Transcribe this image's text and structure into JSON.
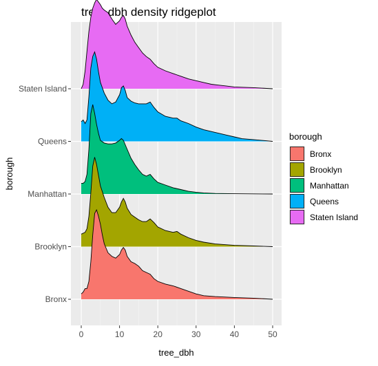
{
  "chart_data": {
    "type": "ridgeline",
    "title": "tree_dbh density ridgeplot",
    "xlabel": "tree_dbh",
    "ylabel": "borough",
    "xlim": [
      0,
      50
    ],
    "x_ticks": [
      0,
      10,
      20,
      30,
      40,
      50
    ],
    "grid": true,
    "legend": {
      "title": "borough",
      "position": "right"
    },
    "categories": [
      "Bronx",
      "Brooklyn",
      "Manhattan",
      "Queens",
      "Staten Island"
    ],
    "series": [
      {
        "name": "Bronx",
        "color": "#F8766D",
        "density": [
          [
            0,
            0.06
          ],
          [
            0.5,
            0.08
          ],
          [
            1,
            0.12
          ],
          [
            1.5,
            0.12
          ],
          [
            2,
            0.2
          ],
          [
            2.5,
            0.42
          ],
          [
            3,
            0.72
          ],
          [
            3.5,
            0.96
          ],
          [
            4,
            1.0
          ],
          [
            4.5,
            0.93
          ],
          [
            5,
            0.84
          ],
          [
            5.5,
            0.72
          ],
          [
            6,
            0.62
          ],
          [
            7,
            0.52
          ],
          [
            8,
            0.48
          ],
          [
            9,
            0.46
          ],
          [
            10,
            0.5
          ],
          [
            10.5,
            0.55
          ],
          [
            11,
            0.58
          ],
          [
            11.5,
            0.55
          ],
          [
            12,
            0.48
          ],
          [
            13,
            0.42
          ],
          [
            14,
            0.4
          ],
          [
            15,
            0.37
          ],
          [
            16,
            0.32
          ],
          [
            17,
            0.3
          ],
          [
            18,
            0.28
          ],
          [
            19,
            0.23
          ],
          [
            20,
            0.2
          ],
          [
            22,
            0.17
          ],
          [
            24,
            0.15
          ],
          [
            26,
            0.12
          ],
          [
            28,
            0.09
          ],
          [
            30,
            0.06
          ],
          [
            32,
            0.04
          ],
          [
            35,
            0.03
          ],
          [
            40,
            0.02
          ],
          [
            45,
            0.012
          ],
          [
            50,
            0.0
          ]
        ]
      },
      {
        "name": "Brooklyn",
        "color": "#A3A500",
        "density": [
          [
            0,
            0.14
          ],
          [
            0.5,
            0.15
          ],
          [
            1,
            0.16
          ],
          [
            1.5,
            0.2
          ],
          [
            2,
            0.34
          ],
          [
            2.5,
            0.6
          ],
          [
            3,
            0.9
          ],
          [
            3.5,
            1.0
          ],
          [
            4,
            0.92
          ],
          [
            4.5,
            0.8
          ],
          [
            5,
            0.68
          ],
          [
            6,
            0.55
          ],
          [
            7,
            0.44
          ],
          [
            8,
            0.38
          ],
          [
            9,
            0.38
          ],
          [
            10,
            0.44
          ],
          [
            10.5,
            0.5
          ],
          [
            11,
            0.54
          ],
          [
            11.5,
            0.5
          ],
          [
            12,
            0.43
          ],
          [
            13,
            0.36
          ],
          [
            14,
            0.33
          ],
          [
            15,
            0.3
          ],
          [
            16,
            0.28
          ],
          [
            17,
            0.28
          ],
          [
            18,
            0.31
          ],
          [
            19,
            0.27
          ],
          [
            20,
            0.22
          ],
          [
            22,
            0.18
          ],
          [
            24,
            0.16
          ],
          [
            25,
            0.17
          ],
          [
            26,
            0.14
          ],
          [
            28,
            0.1
          ],
          [
            30,
            0.07
          ],
          [
            32,
            0.05
          ],
          [
            35,
            0.03
          ],
          [
            40,
            0.015
          ],
          [
            45,
            0.008
          ],
          [
            50,
            0.0
          ]
        ]
      },
      {
        "name": "Manhattan",
        "color": "#00BF7D",
        "density": [
          [
            0,
            0.12
          ],
          [
            0.5,
            0.12
          ],
          [
            1,
            0.14
          ],
          [
            1.5,
            0.22
          ],
          [
            2,
            0.5
          ],
          [
            2.5,
            0.9
          ],
          [
            3,
            1.0
          ],
          [
            3.5,
            0.9
          ],
          [
            4,
            0.78
          ],
          [
            4.5,
            0.68
          ],
          [
            5,
            0.6
          ],
          [
            6,
            0.57
          ],
          [
            7,
            0.56
          ],
          [
            8,
            0.56
          ],
          [
            9,
            0.57
          ],
          [
            10,
            0.6
          ],
          [
            10.5,
            0.62
          ],
          [
            11,
            0.6
          ],
          [
            12,
            0.5
          ],
          [
            13,
            0.4
          ],
          [
            14,
            0.33
          ],
          [
            15,
            0.27
          ],
          [
            16,
            0.22
          ],
          [
            17,
            0.2
          ],
          [
            18,
            0.22
          ],
          [
            19,
            0.17
          ],
          [
            20,
            0.13
          ],
          [
            22,
            0.1
          ],
          [
            24,
            0.07
          ],
          [
            26,
            0.05
          ],
          [
            28,
            0.03
          ],
          [
            30,
            0.02
          ],
          [
            32,
            0.012
          ],
          [
            35,
            0.006
          ],
          [
            40,
            0.003
          ],
          [
            50,
            0.0
          ]
        ]
      },
      {
        "name": "Queens",
        "color": "#00B0F6",
        "density": [
          [
            0,
            0.22
          ],
          [
            0.5,
            0.24
          ],
          [
            1,
            0.2
          ],
          [
            1.5,
            0.24
          ],
          [
            2,
            0.5
          ],
          [
            2.5,
            0.82
          ],
          [
            3,
            0.95
          ],
          [
            3.5,
            1.0
          ],
          [
            4,
            0.92
          ],
          [
            4.5,
            0.78
          ],
          [
            5,
            0.66
          ],
          [
            6,
            0.54
          ],
          [
            7,
            0.46
          ],
          [
            8,
            0.42
          ],
          [
            9,
            0.44
          ],
          [
            10,
            0.52
          ],
          [
            10.5,
            0.6
          ],
          [
            11,
            0.62
          ],
          [
            11.5,
            0.57
          ],
          [
            12,
            0.49
          ],
          [
            13,
            0.45
          ],
          [
            14,
            0.43
          ],
          [
            15,
            0.42
          ],
          [
            16,
            0.42
          ],
          [
            17,
            0.42
          ],
          [
            18,
            0.44
          ],
          [
            19,
            0.38
          ],
          [
            20,
            0.33
          ],
          [
            22,
            0.28
          ],
          [
            24,
            0.26
          ],
          [
            25,
            0.26
          ],
          [
            26,
            0.23
          ],
          [
            28,
            0.2
          ],
          [
            30,
            0.16
          ],
          [
            32,
            0.13
          ],
          [
            34,
            0.11
          ],
          [
            36,
            0.09
          ],
          [
            38,
            0.07
          ],
          [
            40,
            0.05
          ],
          [
            42,
            0.03
          ],
          [
            45,
            0.02
          ],
          [
            50,
            0.0
          ]
        ]
      },
      {
        "name": "Staten Island",
        "color": "#E76BF3",
        "density": [
          [
            0,
            0.0
          ],
          [
            0.5,
            0.05
          ],
          [
            1,
            0.2
          ],
          [
            1.5,
            0.42
          ],
          [
            2,
            0.64
          ],
          [
            2.5,
            0.8
          ],
          [
            3,
            0.9
          ],
          [
            3.5,
            0.96
          ],
          [
            4,
            1.0
          ],
          [
            4.5,
            0.97
          ],
          [
            5,
            0.94
          ],
          [
            5.5,
            0.9
          ],
          [
            6,
            0.88
          ],
          [
            7,
            0.85
          ],
          [
            8,
            0.78
          ],
          [
            9,
            0.72
          ],
          [
            10,
            0.76
          ],
          [
            10.5,
            0.8
          ],
          [
            11,
            0.82
          ],
          [
            11.5,
            0.78
          ],
          [
            12,
            0.7
          ],
          [
            13,
            0.6
          ],
          [
            14,
            0.52
          ],
          [
            15,
            0.46
          ],
          [
            16,
            0.4
          ],
          [
            17,
            0.36
          ],
          [
            18,
            0.33
          ],
          [
            19,
            0.28
          ],
          [
            20,
            0.24
          ],
          [
            22,
            0.2
          ],
          [
            24,
            0.17
          ],
          [
            26,
            0.14
          ],
          [
            28,
            0.11
          ],
          [
            30,
            0.09
          ],
          [
            32,
            0.07
          ],
          [
            34,
            0.05
          ],
          [
            36,
            0.04
          ],
          [
            38,
            0.03
          ],
          [
            40,
            0.02
          ],
          [
            45,
            0.012
          ],
          [
            50,
            0.0
          ]
        ]
      }
    ]
  }
}
